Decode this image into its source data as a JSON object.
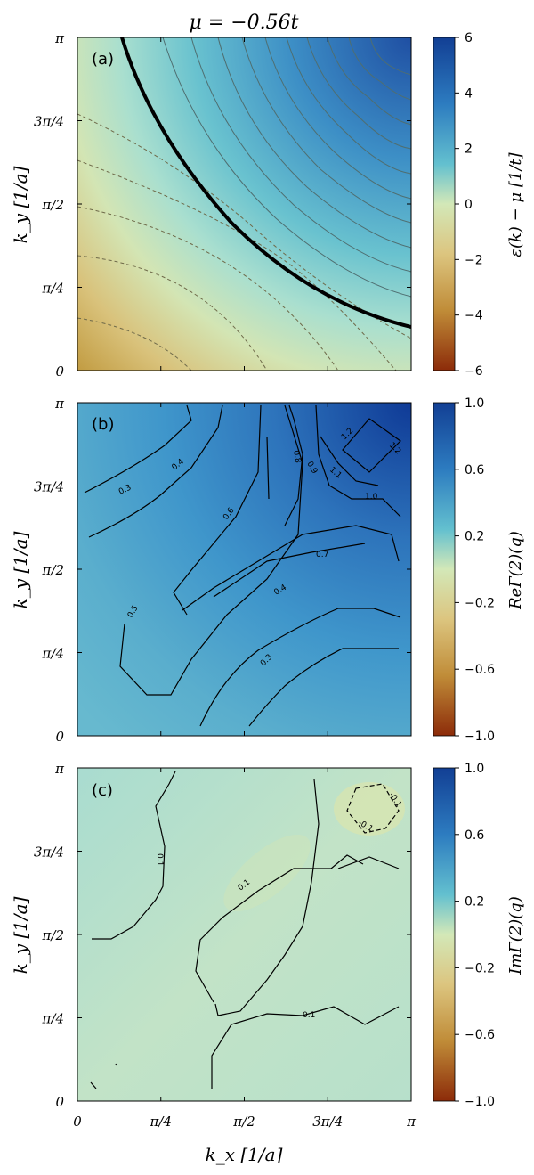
{
  "chart_data": [
    {
      "type": "heatmap",
      "panel_label": "(a)",
      "title": "μ = −0.56t",
      "ylabel": "k_y [1/a]",
      "colorbar_label": "ε(k) − μ [1/t]",
      "colorbar_ticks": [
        "6",
        "4",
        "2",
        "0",
        "−2",
        "−4",
        "−6"
      ],
      "colorbar_range": [
        -6,
        6
      ],
      "y_ticks": [
        "π",
        "3π/4",
        "π/2",
        "π/4",
        "0"
      ],
      "x_ticks": [],
      "contour_style": "solid lines above Fermi surface, dashed lines below, thick black Fermi surface"
    },
    {
      "type": "heatmap",
      "panel_label": "(b)",
      "ylabel": "k_y [1/a]",
      "colorbar_label": "ReΓ(2)(q)",
      "colorbar_ticks": [
        "1.0",
        "0.6",
        "0.2",
        "−0.2",
        "−0.6",
        "−1.0"
      ],
      "colorbar_range": [
        -1.0,
        1.0
      ],
      "y_ticks": [
        "π",
        "3π/4",
        "π/2",
        "π/4",
        "0"
      ],
      "contour_labels": [
        "0.3",
        "0.4",
        "0.5",
        "0.6",
        "0.4",
        "0.7",
        "0.8",
        "0.9",
        "1.0",
        "1.1",
        "1.2",
        "1.2",
        "0.3"
      ]
    },
    {
      "type": "heatmap",
      "panel_label": "(c)",
      "ylabel": "k_y [1/a]",
      "xlabel": "k_x [1/a]",
      "colorbar_label": "ImΓ(2)(q)",
      "colorbar_ticks": [
        "1.0",
        "0.6",
        "0.2",
        "−0.2",
        "−0.6",
        "−1.0"
      ],
      "colorbar_range": [
        -1.0,
        1.0
      ],
      "y_ticks": [
        "π",
        "3π/4",
        "π/2",
        "π/4",
        "0"
      ],
      "x_ticks": [
        "0",
        "π/4",
        "π/2",
        "3π/4",
        "π"
      ],
      "contour_labels": [
        "0.1",
        "0.1",
        "0.1",
        "-0.1",
        "-0.1"
      ]
    }
  ]
}
